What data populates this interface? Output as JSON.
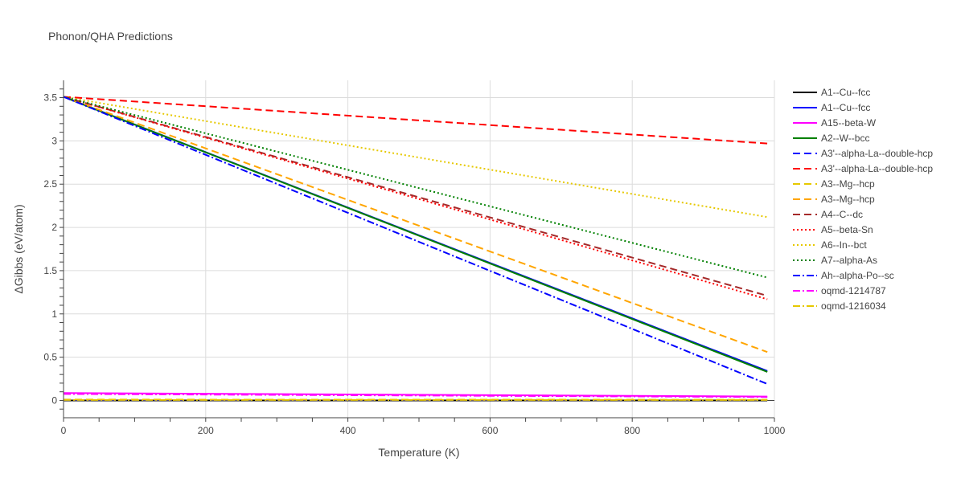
{
  "chart_data": {
    "type": "line",
    "title": "Phonon/QHA Predictions",
    "xlabel": "Temperature (K)",
    "ylabel": "ΔGibbs (eV/atom)",
    "xlim": [
      0,
      1000
    ],
    "ylim": [
      -0.2,
      3.7
    ],
    "x_ticks": [
      0,
      200,
      400,
      600,
      800,
      1000
    ],
    "x_tick_labels": [
      "0",
      "200",
      "400",
      "600",
      "800",
      "1000"
    ],
    "y_ticks": [
      0,
      0.5,
      1,
      1.5,
      2,
      2.5,
      3,
      3.5
    ],
    "y_tick_labels": [
      "0",
      "0.5",
      "1",
      "1.5",
      "2",
      "2.5",
      "3",
      "3.5"
    ],
    "grid": true,
    "legend_position": "right",
    "x": [
      0,
      990
    ],
    "series": [
      {
        "name": "A1--Cu--fcc",
        "color": "#000000",
        "dash": "solid",
        "values": [
          0.0,
          0.0
        ]
      },
      {
        "name": "A1--Cu--fcc",
        "color": "#0000ff",
        "dash": "solid",
        "values": [
          3.51,
          0.34
        ]
      },
      {
        "name": "A15--beta-W",
        "color": "#ff00ff",
        "dash": "solid",
        "values": [
          0.085,
          0.045
        ]
      },
      {
        "name": "A2--W--bcc",
        "color": "#008000",
        "dash": "solid",
        "values": [
          3.51,
          0.33
        ]
      },
      {
        "name": "A3'--alpha-La--double-hcp",
        "color": "#0000ff",
        "dash": "dash",
        "values": [
          0.005,
          0.005
        ]
      },
      {
        "name": "A3'--alpha-La--double-hcp",
        "color": "#ff0000",
        "dash": "dash",
        "values": [
          3.51,
          2.97
        ]
      },
      {
        "name": "A3--Mg--hcp",
        "color": "#e6c800",
        "dash": "dash",
        "values": [
          0.01,
          0.008
        ]
      },
      {
        "name": "A3--Mg--hcp",
        "color": "#ffa500",
        "dash": "dash",
        "values": [
          3.51,
          0.56
        ]
      },
      {
        "name": "A4--C--dc",
        "color": "#a52a2a",
        "dash": "dash",
        "values": [
          3.51,
          1.21
        ]
      },
      {
        "name": "A5--beta-Sn",
        "color": "#ff0000",
        "dash": "dot",
        "values": [
          3.51,
          1.17
        ]
      },
      {
        "name": "A6--In--bct",
        "color": "#e6c800",
        "dash": "dot",
        "values": [
          3.51,
          2.12
        ]
      },
      {
        "name": "A7--alpha-As",
        "color": "#008000",
        "dash": "dot",
        "values": [
          3.51,
          1.42
        ]
      },
      {
        "name": "Ah--alpha-Po--sc",
        "color": "#0000ff",
        "dash": "dashdot",
        "values": [
          3.51,
          0.19
        ]
      },
      {
        "name": "oqmd-1214787",
        "color": "#ff00ff",
        "dash": "dashdot",
        "values": [
          0.075,
          0.04
        ]
      },
      {
        "name": "oqmd-1216034",
        "color": "#e6c800",
        "dash": "dashdot",
        "values": [
          0.005,
          0.005
        ]
      }
    ]
  }
}
